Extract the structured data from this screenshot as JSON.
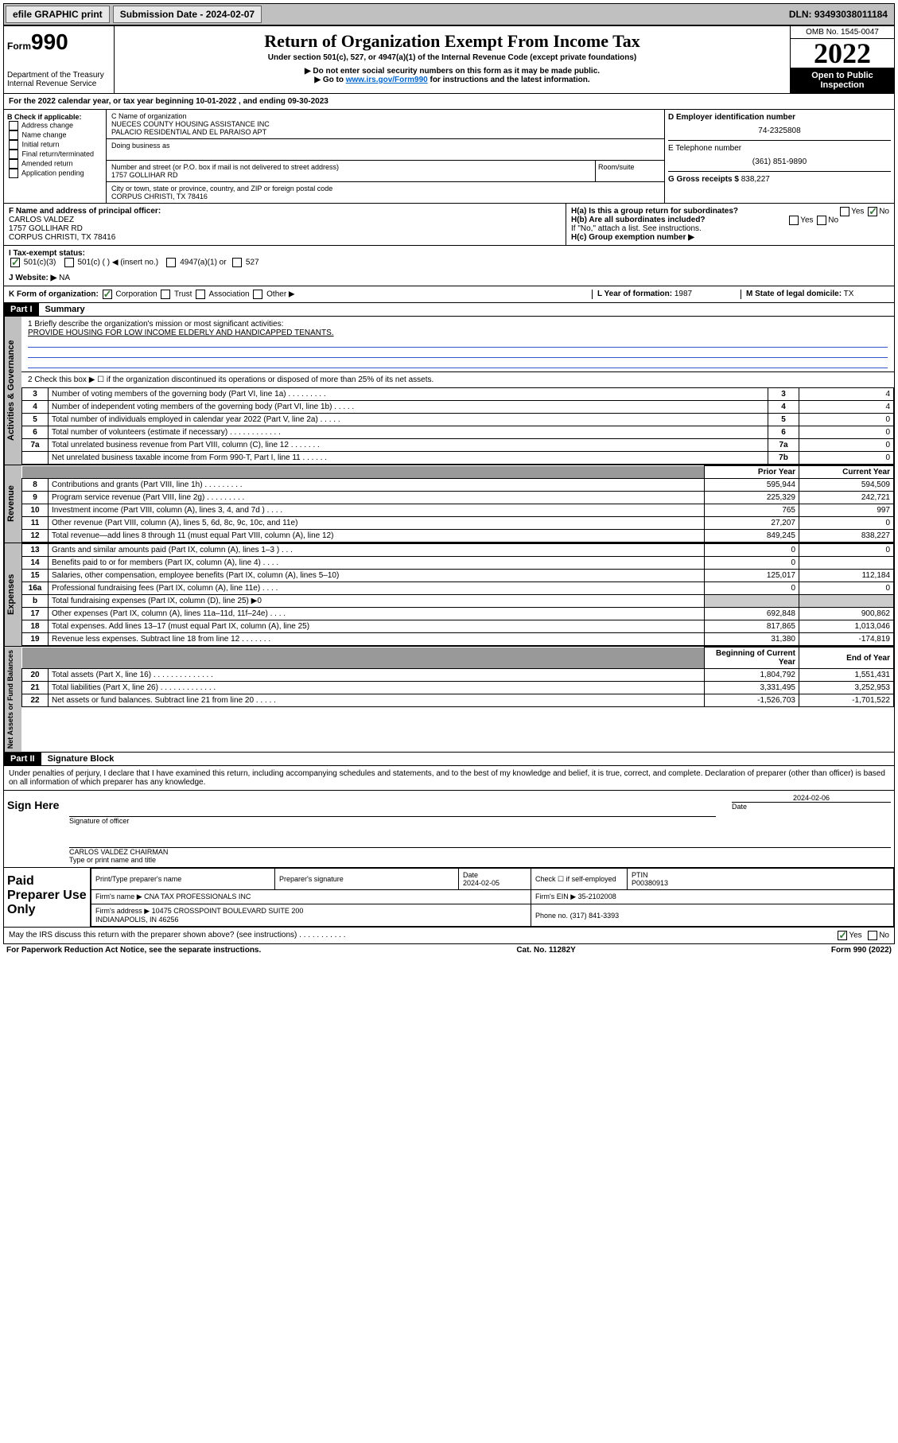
{
  "topbar": {
    "efile": "efile GRAPHIC print",
    "submission": "Submission Date - 2024-02-07",
    "dln": "DLN: 93493038011184"
  },
  "header": {
    "form_prefix": "Form",
    "form_num": "990",
    "dept": "Department of the Treasury",
    "irs": "Internal Revenue Service",
    "title": "Return of Organization Exempt From Income Tax",
    "subtitle": "Under section 501(c), 527, or 4947(a)(1) of the Internal Revenue Code (except private foundations)",
    "note1": "▶ Do not enter social security numbers on this form as it may be made public.",
    "note2_prefix": "▶ Go to ",
    "note2_link": "www.irs.gov/Form990",
    "note2_suffix": " for instructions and the latest information.",
    "omb": "OMB No. 1545-0047",
    "year": "2022",
    "open": "Open to Public Inspection"
  },
  "line_a": "For the 2022 calendar year, or tax year beginning 10-01-2022   , and ending 09-30-2023",
  "box_b": {
    "title": "B Check if applicable:",
    "opts": [
      "Address change",
      "Name change",
      "Initial return",
      "Final return/terminated",
      "Amended return",
      "Application pending"
    ]
  },
  "box_c": {
    "label": "C Name of organization",
    "name1": "NUECES COUNTY HOUSING ASSISTANCE INC",
    "name2": "PALACIO RESIDENTIAL AND EL PARAISO APT",
    "dba_label": "Doing business as",
    "street_label": "Number and street (or P.O. box if mail is not delivered to street address)",
    "room_label": "Room/suite",
    "street": "1757 GOLLIHAR RD",
    "city_label": "City or town, state or province, country, and ZIP or foreign postal code",
    "city": "CORPUS CHRISTI, TX  78416"
  },
  "box_d": {
    "label": "D Employer identification number",
    "ein": "74-2325808"
  },
  "box_e": {
    "label": "E Telephone number",
    "phone": "(361) 851-9890"
  },
  "box_g": {
    "label": "G Gross receipts $",
    "amount": "838,227"
  },
  "box_f": {
    "label": "F Name and address of principal officer:",
    "name": "CARLOS VALDEZ",
    "addr1": "1757 GOLLIHAR RD",
    "addr2": "CORPUS CHRISTI, TX  78416"
  },
  "box_h": {
    "a_label": "H(a)  Is this a group return for subordinates?",
    "b_label": "H(b)  Are all subordinates included?",
    "b_note": "If \"No,\" attach a list. See instructions.",
    "c_label": "H(c)  Group exemption number ▶",
    "yes": "Yes",
    "no": "No"
  },
  "box_i": {
    "label": "I   Tax-exempt status:",
    "opt1": "501(c)(3)",
    "opt2": "501(c) (  ) ◀ (insert no.)",
    "opt3": "4947(a)(1) or",
    "opt4": "527"
  },
  "box_j": {
    "label": "J   Website: ▶",
    "val": "NA"
  },
  "box_k": {
    "label": "K Form of organization:",
    "opts": [
      "Corporation",
      "Trust",
      "Association",
      "Other ▶"
    ]
  },
  "box_l": {
    "label": "L Year of formation:",
    "val": "1987"
  },
  "box_m": {
    "label": "M State of legal domicile:",
    "val": "TX"
  },
  "part1": {
    "tag": "Part I",
    "title": "Summary"
  },
  "mission": {
    "label": "1   Briefly describe the organization's mission or most significant activities:",
    "text": "PROVIDE HOUSING FOR LOW INCOME ELDERLY AND HANDICAPPED TENANTS."
  },
  "line2": "2   Check this box ▶ ☐  if the organization discontinued its operations or disposed of more than 25% of its net assets.",
  "gov_lines": [
    {
      "n": "3",
      "t": "Number of voting members of the governing body (Part VI, line 1a)   .    .    .    .    .    .    .    .    .",
      "box": "3",
      "v": "4"
    },
    {
      "n": "4",
      "t": "Number of independent voting members of the governing body (Part VI, line 1b)   .    .    .    .    .",
      "box": "4",
      "v": "4"
    },
    {
      "n": "5",
      "t": "Total number of individuals employed in calendar year 2022 (Part V, line 2a)   .    .    .    .    .",
      "box": "5",
      "v": "0"
    },
    {
      "n": "6",
      "t": "Total number of volunteers (estimate if necessary)   .    .    .    .    .    .    .    .    .    .    .    .",
      "box": "6",
      "v": "0"
    },
    {
      "n": "7a",
      "t": "Total unrelated business revenue from Part VIII, column (C), line 12   .    .    .    .    .    .    .",
      "box": "7a",
      "v": "0"
    },
    {
      "n": "",
      "t": "Net unrelated business taxable income from Form 990-T, Part I, line 11   .    .    .    .    .    .",
      "box": "7b",
      "v": "0"
    }
  ],
  "col_headers": {
    "py": "Prior Year",
    "cy": "Current Year"
  },
  "rev_lines": [
    {
      "n": "8",
      "t": "Contributions and grants (Part VIII, line 1h)   .    .    .    .    .    .    .    .    .",
      "py": "595,944",
      "cy": "594,509"
    },
    {
      "n": "9",
      "t": "Program service revenue (Part VIII, line 2g)   .    .    .    .    .    .    .    .    .",
      "py": "225,329",
      "cy": "242,721"
    },
    {
      "n": "10",
      "t": "Investment income (Part VIII, column (A), lines 3, 4, and 7d )   .    .    .    .",
      "py": "765",
      "cy": "997"
    },
    {
      "n": "11",
      "t": "Other revenue (Part VIII, column (A), lines 5, 6d, 8c, 9c, 10c, and 11e)",
      "py": "27,207",
      "cy": "0"
    },
    {
      "n": "12",
      "t": "Total revenue—add lines 8 through 11 (must equal Part VIII, column (A), line 12)",
      "py": "849,245",
      "cy": "838,227"
    }
  ],
  "exp_lines": [
    {
      "n": "13",
      "t": "Grants and similar amounts paid (Part IX, column (A), lines 1–3 )   .    .    .",
      "py": "0",
      "cy": "0"
    },
    {
      "n": "14",
      "t": "Benefits paid to or for members (Part IX, column (A), line 4)   .    .    .    .",
      "py": "0",
      "cy": ""
    },
    {
      "n": "15",
      "t": "Salaries, other compensation, employee benefits (Part IX, column (A), lines 5–10)",
      "py": "125,017",
      "cy": "112,184"
    },
    {
      "n": "16a",
      "t": "Professional fundraising fees (Part IX, column (A), line 11e)   .    .    .    .",
      "py": "0",
      "cy": "0"
    },
    {
      "n": "b",
      "t": "Total fundraising expenses (Part IX, column (D), line 25) ▶0",
      "py": "",
      "cy": ""
    },
    {
      "n": "17",
      "t": "Other expenses (Part IX, column (A), lines 11a–11d, 11f–24e)   .    .    .    .",
      "py": "692,848",
      "cy": "900,862"
    },
    {
      "n": "18",
      "t": "Total expenses. Add lines 13–17 (must equal Part IX, column (A), line 25)",
      "py": "817,865",
      "cy": "1,013,046"
    },
    {
      "n": "19",
      "t": "Revenue less expenses. Subtract line 18 from line 12   .    .    .    .    .    .    .",
      "py": "31,380",
      "cy": "-174,819"
    }
  ],
  "na_headers": {
    "boy": "Beginning of Current Year",
    "eoy": "End of Year"
  },
  "na_lines": [
    {
      "n": "20",
      "t": "Total assets (Part X, line 16)   .    .    .    .    .    .    .    .    .    .    .    .    .    .",
      "py": "1,804,792",
      "cy": "1,551,431"
    },
    {
      "n": "21",
      "t": "Total liabilities (Part X, line 26)   .    .    .    .    .    .    .    .    .    .    .    .    .",
      "py": "3,331,495",
      "cy": "3,252,953"
    },
    {
      "n": "22",
      "t": "Net assets or fund balances. Subtract line 21 from line 20   .    .    .    .    .",
      "py": "-1,526,703",
      "cy": "-1,701,522"
    }
  ],
  "vtabs": {
    "gov": "Activities & Governance",
    "rev": "Revenue",
    "exp": "Expenses",
    "na": "Net Assets or Fund Balances"
  },
  "part2": {
    "tag": "Part II",
    "title": "Signature Block",
    "penalty": "Under penalties of perjury, I declare that I have examined this return, including accompanying schedules and statements, and to the best of my knowledge and belief, it is true, correct, and complete. Declaration of preparer (other than officer) is based on all information of which preparer has any knowledge."
  },
  "sign": {
    "here": "Sign Here",
    "sig_of": "Signature of officer",
    "date_label": "Date",
    "date_val": "2024-02-06",
    "name": "CARLOS VALDEZ  CHAIRMAN",
    "type_label": "Type or print name and title"
  },
  "prep": {
    "title": "Paid Preparer Use Only",
    "h1": "Print/Type preparer's name",
    "h2": "Preparer's signature",
    "h3": "Date",
    "date": "2024-02-05",
    "h4": "Check ☐ if self-employed",
    "h5": "PTIN",
    "ptin": "P00380913",
    "firm_label": "Firm's name    ▶",
    "firm": "CNA TAX PROFESSIONALS INC",
    "ein_label": "Firm's EIN ▶",
    "ein": "35-2102008",
    "addr_label": "Firm's address ▶",
    "addr": "10475 CROSSPOINT BOULEVARD SUITE 200\nINDIANAPOLIS, IN  46256",
    "phone_label": "Phone no.",
    "phone": "(317) 841-3393"
  },
  "irs_discuss": "May the IRS discuss this return with the preparer shown above? (see instructions)   .    .    .    .    .    .    .    .    .    .    .",
  "footer": {
    "left": "For Paperwork Reduction Act Notice, see the separate instructions.",
    "mid": "Cat. No. 11282Y",
    "right": "Form 990 (2022)"
  }
}
